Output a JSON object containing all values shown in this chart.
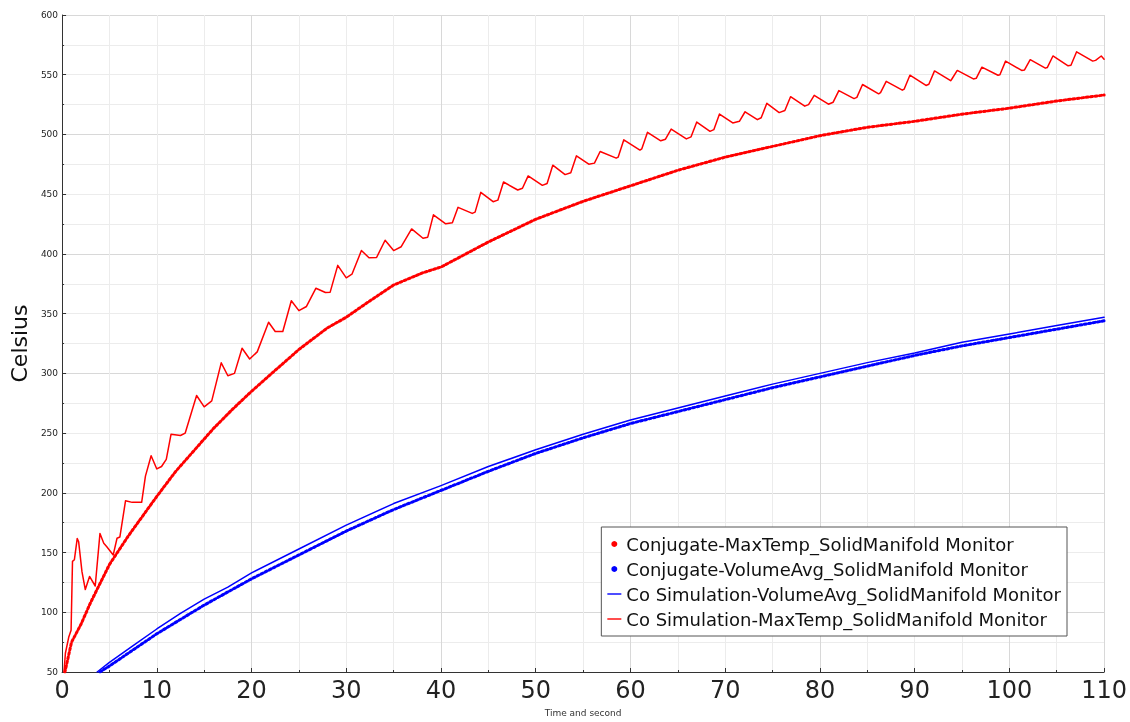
{
  "chart_data": {
    "type": "line",
    "xlabel": "Time and second",
    "ylabel": "Celsius",
    "xlim": [
      0,
      110
    ],
    "xticks": [
      0,
      10,
      20,
      30,
      40,
      50,
      60,
      70,
      80,
      90,
      100,
      110
    ],
    "ylim": [
      50,
      600
    ],
    "yticks": [
      50,
      100,
      150,
      200,
      250,
      300,
      350,
      400,
      450,
      500,
      550,
      600
    ],
    "grid": true,
    "legend": "bottom right",
    "marker": "none",
    "series": [
      {
        "name": "Conjugate-MaxTemp_SolidManifold Monitor",
        "color": "#ff0000",
        "line_style": "dotted",
        "x": [
          0.3,
          1,
          2,
          3,
          4,
          5,
          6,
          7,
          8,
          9,
          10,
          12,
          14,
          16,
          18,
          20,
          22,
          25,
          28,
          30,
          32,
          35,
          38,
          40,
          45,
          50,
          55,
          60,
          65,
          70,
          75,
          80,
          85,
          90,
          95,
          100,
          105,
          110
        ],
        "values": [
          50,
          75,
          90,
          108,
          124,
          140,
          152,
          164,
          175,
          186,
          197,
          218,
          236,
          254,
          270,
          285,
          299,
          320,
          338,
          347,
          358,
          374,
          384,
          389,
          410,
          429,
          444,
          457,
          470,
          481,
          490,
          499,
          506,
          511,
          517,
          522,
          528,
          533
        ]
      },
      {
        "name": "Conjugate-VolumeAvg_SolidManifold Monitor",
        "color": "#0000ff",
        "line_style": "dotted",
        "x": [
          4,
          5,
          10,
          15,
          20,
          25,
          30,
          35,
          40,
          45,
          50,
          55,
          60,
          65,
          70,
          75,
          80,
          85,
          90,
          95,
          100,
          105,
          110
        ],
        "values": [
          50,
          55,
          82,
          106,
          128,
          148,
          168,
          186,
          202,
          218,
          233,
          246,
          258,
          268,
          278,
          288,
          297,
          306,
          315,
          323,
          330,
          337,
          344
        ]
      },
      {
        "name": "Co Simulation-VolumeAvg_SolidManifold Monitor",
        "color": "#0000ff",
        "line_style": "solid",
        "x": [
          3.7,
          5,
          7.5,
          10,
          12.5,
          15,
          17.5,
          20,
          25,
          30,
          35,
          40,
          45,
          50,
          55,
          60,
          65,
          70,
          75,
          80,
          85,
          90,
          95,
          100,
          105,
          110
        ],
        "values": [
          50,
          58,
          72,
          86,
          99,
          111,
          121,
          133,
          153,
          173,
          191,
          206,
          222,
          236,
          249,
          261,
          271,
          281,
          291,
          300,
          309,
          317,
          326,
          333,
          340,
          347
        ]
      },
      {
        "name": "Co Simulation-MaxTemp_SolidManifold Monitor",
        "color": "#ff0000",
        "line_style": "solid",
        "x": [
          0.2,
          0.35,
          0.7,
          0.95,
          1.1,
          1.3,
          1.6,
          1.75,
          2.1,
          2.45,
          2.9,
          3.5,
          4.0,
          4.4,
          4.7,
          5.4,
          5.8,
          6.1,
          6.7,
          7.4,
          8.4,
          8.8,
          9.4,
          10,
          10.5,
          11,
          11.5,
          12.5,
          13,
          14.2,
          15,
          15.8,
          16.8,
          17.5,
          18.2,
          19,
          19.8,
          20.6,
          21.8,
          22.5,
          23.3,
          24.2,
          25,
          25.8,
          26.8,
          27.8,
          28.3,
          29.1,
          30,
          30.6,
          31.6,
          32.4,
          33.2,
          34.1,
          35,
          35.8,
          36.9,
          38.1,
          38.6,
          39.2,
          40.5,
          41.2,
          41.8,
          43.3,
          43.6,
          44.2,
          45.5,
          46,
          46.6,
          48.1,
          48.6,
          49.2,
          50.7,
          51.2,
          51.8,
          53.1,
          53.7,
          54.3,
          55.6,
          56.2,
          56.8,
          58.5,
          58.7,
          59.3,
          61,
          61.2,
          61.8,
          63.2,
          63.7,
          64.3,
          65.9,
          66.4,
          67,
          68.4,
          68.8,
          69.4,
          70.8,
          71.5,
          72.1,
          73.4,
          73.8,
          74.4,
          75.7,
          76.3,
          76.9,
          78.4,
          78.8,
          79.4,
          80.9,
          81.4,
          82,
          83.6,
          83.9,
          84.5,
          86.2,
          86.4,
          87,
          88.7,
          88.9,
          89.5,
          91.2,
          91.5,
          92.1,
          93.8,
          93.9,
          94.5,
          96.2,
          96.5,
          97.1,
          98.8,
          99,
          99.6,
          101.3,
          101.6,
          102.2,
          103.8,
          104,
          104.6,
          106.2,
          106.5,
          107.1,
          108.8,
          109.1,
          109.7,
          110
        ],
        "values": [
          50,
          65.7,
          79,
          85,
          142.6,
          144,
          161.8,
          159,
          134,
          119,
          130,
          122,
          166,
          157.7,
          155,
          148,
          162,
          163,
          193.4,
          192,
          192,
          214,
          231,
          220,
          222,
          228,
          249,
          248,
          250,
          281.5,
          272,
          277,
          308.8,
          298,
          300,
          321,
          312,
          318,
          342.8,
          335,
          335,
          360.8,
          352.5,
          356,
          371.3,
          367.7,
          368,
          390.4,
          380,
          383,
          402.8,
          396.8,
          397,
          411.4,
          402.8,
          406,
          420.9,
          413.1,
          414,
          432.7,
          425.2,
          426,
          439,
          433.9,
          435,
          451.5,
          443.7,
          445,
          460.2,
          453.5,
          455,
          465.3,
          457.4,
          459,
          474.3,
          466.4,
          468,
          482.1,
          475.1,
          476,
          485.7,
          480.2,
          481,
          495.5,
          486.9,
          488,
          501.8,
          494.7,
          496,
          504.5,
          496.3,
          498,
          510.4,
          502.6,
          504,
          517.1,
          509.6,
          511,
          519,
          512.4,
          514,
          526.1,
          518.3,
          520,
          531.6,
          523.7,
          525,
          532.7,
          525.3,
          527,
          536.7,
          530,
          531,
          541.8,
          534,
          535,
          544.5,
          537.1,
          538,
          549.6,
          541,
          542,
          553.2,
          545,
          546,
          553.6,
          546.5,
          547,
          556.3,
          549.6,
          550,
          561.4,
          553.6,
          554,
          562.6,
          555.5,
          556,
          565.7,
          557.5,
          558,
          569.2,
          561.4,
          562,
          565.7,
          563
        ]
      }
    ]
  }
}
